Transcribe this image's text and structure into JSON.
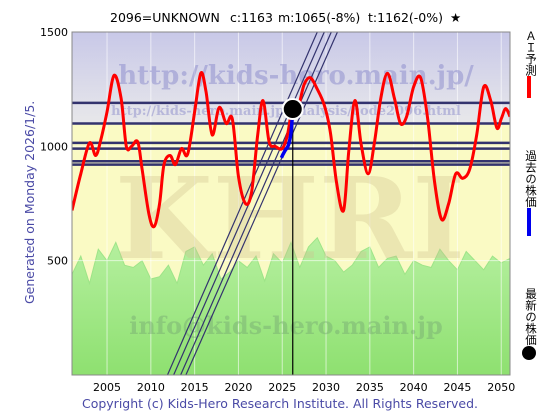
{
  "header": {
    "title": "2096=UNKNOWN",
    "current": "c:1163",
    "model": "m:1065(-8%)",
    "target": "t:1162(-0%)",
    "star": "★"
  },
  "side_text": "Generated on Monday 2026/1/5.",
  "footer": "Copyright (c) Kids-Hero Research Institute. All Rights Reserved.",
  "watermarks": {
    "url_top": "http://kids-hero.main.jp/",
    "url_mid": "http://kids-hero.main.jp/analysis/code2096.html",
    "logo": "KHRI",
    "email": "info@kids-hero.main.jp"
  },
  "legend": [
    {
      "label": "ＡＩ予測",
      "color": "#ff0000",
      "kind": "line"
    },
    {
      "label": "過去の株価",
      "color": "#0000ee",
      "kind": "line"
    },
    {
      "label": "最新の株価",
      "color": "#000000",
      "kind": "dot"
    }
  ],
  "colors": {
    "background_gradient_top": "#c8c8e8",
    "background_gradient_bottom": "#fdfdd8",
    "yellow_zone": "#fafac4",
    "volume_fill": "#a8ec90",
    "prediction": "#ff0000",
    "past": "#0000ee",
    "channel": "#33336e",
    "axis_labels": "#000000"
  },
  "chart_data": {
    "type": "line",
    "title": "2096=UNKNOWN",
    "xlim": [
      2001,
      2051
    ],
    "ylim": [
      0,
      1500
    ],
    "x_ticks": [
      2005,
      2010,
      2015,
      2020,
      2025,
      2030,
      2035,
      2040,
      2045,
      2050
    ],
    "y_ticks": [
      500,
      1000,
      1500
    ],
    "grid": true,
    "legend_position": "right",
    "current_marker": {
      "x": 2026.2,
      "y": 1163
    },
    "current_vline_x": 2026.2,
    "horizontal_levels": [
      1190,
      1100,
      1015,
      990,
      935,
      920
    ],
    "yellow_zone_top": 1100,
    "channel_lines": [
      {
        "x1": 2011.9,
        "x2": 2029.0
      },
      {
        "x1": 2012.6,
        "x2": 2029.8
      },
      {
        "x1": 2013.4,
        "x2": 2030.6
      },
      {
        "x1": 2014.0,
        "x2": 2031.3
      }
    ],
    "series": [
      {
        "name": "ＡＩ予測",
        "color": "#ff0000",
        "x": [
          2001,
          2002,
          2003,
          2003.7,
          2004.3,
          2005,
          2005.8,
          2006.6,
          2007.2,
          2007.8,
          2008.5,
          2009,
          2009.8,
          2010.4,
          2011,
          2011.5,
          2012.2,
          2012.8,
          2013.5,
          2014.2,
          2015,
          2015.7,
          2016.3,
          2017,
          2017.8,
          2018.6,
          2019.3,
          2020,
          2020.8,
          2021.5,
          2022.2,
          2022.8,
          2023.5,
          2024.2,
          2025,
          2025.6,
          2026.2,
          2026.8,
          2027.5,
          2028.2,
          2029,
          2029.8,
          2030.5,
          2031.2,
          2032,
          2032.6,
          2033.3,
          2034,
          2034.8,
          2035.5,
          2036.2,
          2037,
          2037.8,
          2038.5,
          2039.2,
          2040,
          2040.8,
          2041.6,
          2042.4,
          2043.2,
          2044,
          2044.8,
          2045.6,
          2046.4,
          2047.2,
          2048,
          2048.8,
          2049.5,
          2050,
          2050.5,
          2051
        ],
        "y": [
          720,
          880,
          1015,
          960,
          1030,
          1150,
          1310,
          1210,
          1000,
          1000,
          1020,
          900,
          700,
          650,
          750,
          920,
          960,
          920,
          990,
          965,
          1150,
          1320,
          1240,
          1050,
          1170,
          1100,
          1120,
          870,
          750,
          800,
          1050,
          1200,
          1020,
          1000,
          990,
          1050,
          1180,
          1170,
          1270,
          1300,
          1250,
          1180,
          1060,
          840,
          720,
          980,
          1200,
          1010,
          880,
          1010,
          1200,
          1320,
          1210,
          1100,
          1130,
          1260,
          1300,
          1120,
          840,
          680,
          750,
          880,
          860,
          900,
          1050,
          1260,
          1200,
          1080,
          1120,
          1165,
          1130
        ]
      },
      {
        "name": "過去の株価",
        "color": "#0000ee",
        "x": [
          2024.9,
          2025.3,
          2025.7,
          2026.0,
          2026.2
        ],
        "y": [
          950,
          980,
          1005,
          1060,
          1163
        ]
      }
    ],
    "volume_band": {
      "x": [
        2001,
        2002,
        2003,
        2004,
        2005,
        2006,
        2007,
        2008,
        2009,
        2010,
        2011,
        2012,
        2013,
        2014,
        2015,
        2016,
        2017,
        2018,
        2019,
        2020,
        2021,
        2022,
        2023,
        2024,
        2025,
        2026,
        2027,
        2028,
        2029,
        2030,
        2031,
        2032,
        2033,
        2034,
        2035,
        2036,
        2037,
        2038,
        2039,
        2040,
        2041,
        2042,
        2043,
        2044,
        2045,
        2046,
        2047,
        2048,
        2049,
        2050,
        2051
      ],
      "y": [
        440,
        520,
        400,
        550,
        500,
        580,
        480,
        470,
        500,
        420,
        430,
        480,
        400,
        540,
        560,
        480,
        530,
        420,
        450,
        500,
        470,
        520,
        410,
        530,
        490,
        580,
        470,
        560,
        600,
        520,
        500,
        450,
        480,
        540,
        560,
        470,
        510,
        520,
        440,
        500,
        480,
        470,
        550,
        500,
        460,
        540,
        500,
        460,
        520,
        490,
        510
      ]
    }
  }
}
